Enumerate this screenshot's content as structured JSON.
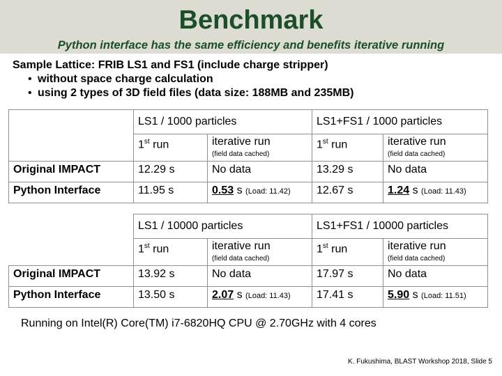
{
  "header": {
    "title": "Benchmark",
    "subtitle": "Python interface has the same efficiency and benefits iterative running"
  },
  "intro": {
    "line": "Sample Lattice: FRIB LS1 and FS1 (include charge stripper)",
    "bullets": [
      "without space charge calculation",
      "using 2 types of 3D field files (data size: 188MB and 235MB)"
    ]
  },
  "tables": [
    {
      "group_a": "LS1 / 1000 particles",
      "group_b": "LS1+FS1 / 1000 particles",
      "first_run_prefix": "1",
      "first_run_sup": "st",
      "first_run_suffix": " run",
      "iterative_label": "iterative run",
      "iterative_note": "(field data cached)",
      "rows": [
        {
          "label": "Original IMPACT",
          "a1": "12.29 s",
          "a2": "No data",
          "b1": "13.29 s",
          "b2": "No data"
        },
        {
          "label": "Python Interface",
          "a1": "11.95 s",
          "a2": "0.53",
          "a2_unit": "s",
          "a2_load": "(Load: 11.42)",
          "b1": "12.67 s",
          "b2": "1.24",
          "b2_unit": "s",
          "b2_load": "(Load: 11.43)"
        }
      ]
    },
    {
      "group_a": "LS1 / 10000 particles",
      "group_b": "LS1+FS1 / 10000 particles",
      "first_run_prefix": "1",
      "first_run_sup": "st",
      "first_run_suffix": " run",
      "iterative_label": "iterative run",
      "iterative_note": "(field data cached)",
      "rows": [
        {
          "label": "Original IMPACT",
          "a1": "13.92 s",
          "a2": "No data",
          "b1": "17.97 s",
          "b2": "No data"
        },
        {
          "label": "Python Interface",
          "a1": "13.50 s",
          "a2": "2.07",
          "a2_unit": "s",
          "a2_load": "(Load: 11.43)",
          "b1": "17.41 s",
          "b2": "5.90",
          "b2_unit": "s",
          "b2_load": "(Load: 11.51)"
        }
      ]
    }
  ],
  "footer": {
    "hardware": "Running on Intel(R) Core(TM) i7-6820HQ CPU @ 2.70GHz with 4 cores",
    "credit": "K. Fukushima, BLAST Workshop 2018, Slide 5"
  }
}
